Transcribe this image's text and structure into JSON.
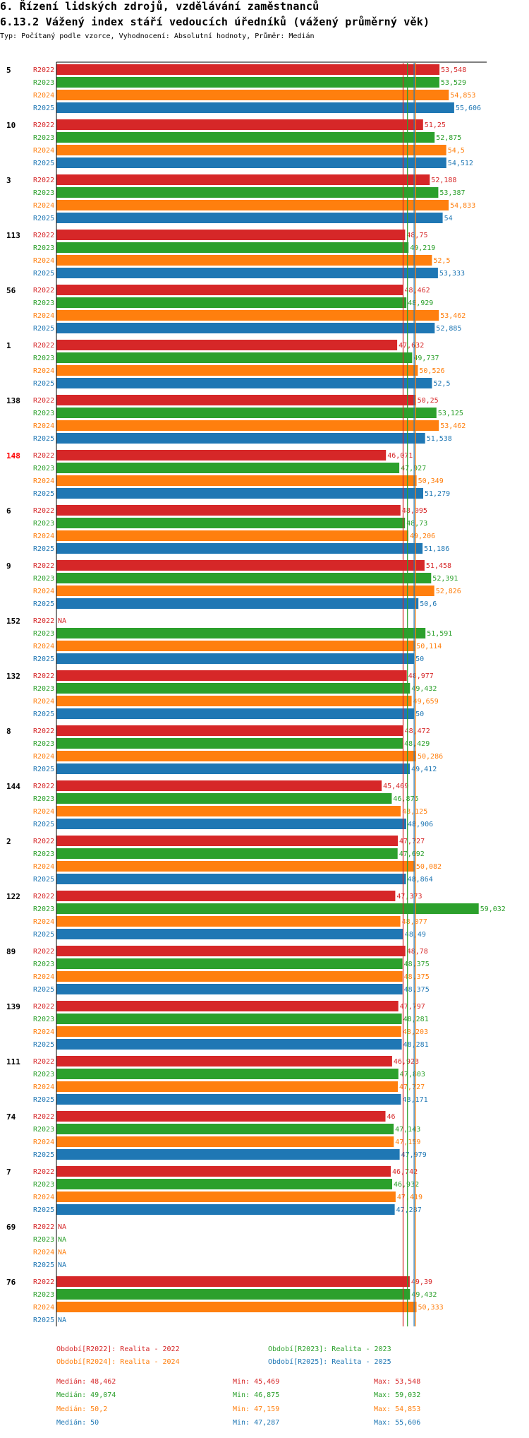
{
  "title": "6. Řízení lidských zdrojů, vzdělávání zaměstnanců",
  "subtitle": "6.13.2 Vážený index stáří vedoucích úředníků (vážený průměrný věk)",
  "type_line": "Typ: Počítaný podle vzorce, Vyhodnocení: Absolutní hodnoty, Průměr: Medián",
  "colors": {
    "R2022": "#d62728",
    "R2023": "#2ca02c",
    "R2024": "#ff7f0e",
    "R2025": "#1f77b4",
    "highlight_group": "#ff0000"
  },
  "chart_data": {
    "type": "bar",
    "orientation": "horizontal",
    "series_names": [
      "R2022",
      "R2023",
      "R2024",
      "R2025"
    ],
    "na_label": "NA",
    "highlighted_group": "148",
    "groups": [
      {
        "id": "5",
        "values": [
          53.548,
          53.529,
          54.853,
          55.606
        ],
        "labels": [
          "53,548",
          "53,529",
          "54,853",
          "55,606"
        ]
      },
      {
        "id": "10",
        "values": [
          51.25,
          52.875,
          54.5,
          54.512
        ],
        "labels": [
          "51,25",
          "52,875",
          "54,5",
          "54,512"
        ]
      },
      {
        "id": "3",
        "values": [
          52.188,
          53.387,
          54.833,
          54
        ],
        "labels": [
          "52,188",
          "53,387",
          "54,833",
          "54"
        ]
      },
      {
        "id": "113",
        "values": [
          48.75,
          49.219,
          52.5,
          53.333
        ],
        "labels": [
          "48,75",
          "49,219",
          "52,5",
          "53,333"
        ]
      },
      {
        "id": "56",
        "values": [
          48.462,
          48.929,
          53.462,
          52.885
        ],
        "labels": [
          "48,462",
          "48,929",
          "53,462",
          "52,885"
        ]
      },
      {
        "id": "1",
        "values": [
          47.632,
          49.737,
          50.526,
          52.5
        ],
        "labels": [
          "47,632",
          "49,737",
          "50,526",
          "52,5"
        ]
      },
      {
        "id": "138",
        "values": [
          50.25,
          53.125,
          53.462,
          51.538
        ],
        "labels": [
          "50,25",
          "53,125",
          "53,462",
          "51,538"
        ]
      },
      {
        "id": "148",
        "values": [
          46.071,
          47.927,
          50.349,
          51.279
        ],
        "labels": [
          "46,071",
          "47,927",
          "50,349",
          "51,279"
        ]
      },
      {
        "id": "6",
        "values": [
          48.095,
          48.73,
          49.206,
          51.186
        ],
        "labels": [
          "48,095",
          "48,73",
          "49,206",
          "51,186"
        ]
      },
      {
        "id": "9",
        "values": [
          51.458,
          52.391,
          52.826,
          50.6
        ],
        "labels": [
          "51,458",
          "52,391",
          "52,826",
          "50,6"
        ]
      },
      {
        "id": "152",
        "values": [
          null,
          51.591,
          50.114,
          50
        ],
        "labels": [
          "NA",
          "51,591",
          "50,114",
          "50"
        ]
      },
      {
        "id": "132",
        "values": [
          48.977,
          49.432,
          49.659,
          50
        ],
        "labels": [
          "48,977",
          "49,432",
          "49,659",
          "50"
        ]
      },
      {
        "id": "8",
        "values": [
          48.472,
          48.429,
          50.286,
          49.412
        ],
        "labels": [
          "48,472",
          "48,429",
          "50,286",
          "49,412"
        ]
      },
      {
        "id": "144",
        "values": [
          45.469,
          46.875,
          48.125,
          48.906
        ],
        "labels": [
          "45,469",
          "46,875",
          "48,125",
          "48,906"
        ]
      },
      {
        "id": "2",
        "values": [
          47.727,
          47.692,
          50.082,
          48.864
        ],
        "labels": [
          "47,727",
          "47,692",
          "50,082",
          "48,864"
        ]
      },
      {
        "id": "122",
        "values": [
          47.373,
          59.032,
          48.077,
          48.49
        ],
        "labels": [
          "47,373",
          "59,032",
          "48,077",
          "48,49"
        ]
      },
      {
        "id": "89",
        "values": [
          48.78,
          48.375,
          48.375,
          48.375
        ],
        "labels": [
          "48,78",
          "48,375",
          "48,375",
          "48,375"
        ]
      },
      {
        "id": "139",
        "values": [
          47.797,
          48.281,
          48.203,
          48.281
        ],
        "labels": [
          "47,797",
          "48,281",
          "48,203",
          "48,281"
        ]
      },
      {
        "id": "111",
        "values": [
          46.923,
          47.803,
          47.727,
          48.171
        ],
        "labels": [
          "46,923",
          "47,803",
          "47,727",
          "48,171"
        ]
      },
      {
        "id": "74",
        "values": [
          46,
          47.143,
          47.159,
          47.979
        ],
        "labels": [
          "46",
          "47,143",
          "47,159",
          "47,979"
        ]
      },
      {
        "id": "7",
        "values": [
          46.742,
          46.932,
          47.419,
          47.287
        ],
        "labels": [
          "46,742",
          "46,932",
          "47,419",
          "47,287"
        ]
      },
      {
        "id": "69",
        "values": [
          null,
          null,
          null,
          null
        ],
        "labels": [
          "NA",
          "NA",
          "NA",
          "NA"
        ]
      },
      {
        "id": "76",
        "values": [
          49.39,
          49.432,
          50.333,
          null
        ],
        "labels": [
          "49,39",
          "49,432",
          "50,333",
          "NA"
        ]
      }
    ],
    "medians": [
      48.462,
      49.074,
      50.2,
      50
    ],
    "xlim": [
      0,
      60.05
    ]
  },
  "legend": {
    "periods": [
      "Období[R2022]: Realita - 2022",
      "Období[R2023]: Realita - 2023",
      "Období[R2024]: Realita - 2024",
      "Období[R2025]: Realita - 2025"
    ],
    "stats": [
      {
        "median": "Medián: 48,462",
        "min": "Min: 45,469",
        "max": "Max: 53,548"
      },
      {
        "median": "Medián: 49,074",
        "min": "Min: 46,875",
        "max": "Max: 59,032"
      },
      {
        "median": "Medián: 50,2",
        "min": "Min: 47,159",
        "max": "Max: 54,853"
      },
      {
        "median": "Medián: 50",
        "min": "Min: 47,287",
        "max": "Max: 55,606"
      }
    ]
  }
}
